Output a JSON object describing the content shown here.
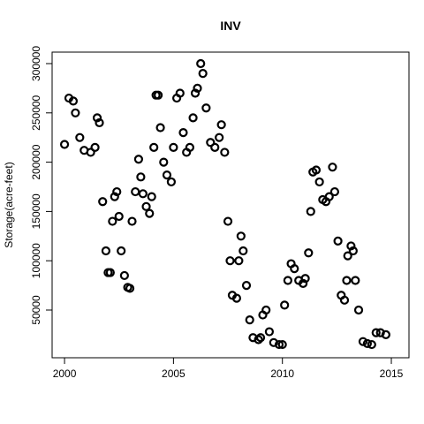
{
  "chart_data": {
    "type": "scatter",
    "title": "INV",
    "ylabel": "Storage(acre-feet)",
    "x": [
      2000.0,
      2000.2,
      2000.4,
      2000.5,
      2000.7,
      2000.9,
      2001.2,
      2001.4,
      2001.5,
      2001.6,
      2001.75,
      2001.9,
      2002.0,
      2002.1,
      2002.2,
      2002.3,
      2002.4,
      2002.5,
      2002.6,
      2002.75,
      2002.9,
      2003.0,
      2003.1,
      2003.25,
      2003.4,
      2003.5,
      2003.6,
      2003.75,
      2003.9,
      2004.0,
      2004.1,
      2004.2,
      2004.3,
      2004.4,
      2004.55,
      2004.7,
      2004.9,
      2005.0,
      2005.15,
      2005.3,
      2005.45,
      2005.6,
      2005.75,
      2005.9,
      2006.0,
      2006.1,
      2006.25,
      2006.35,
      2006.5,
      2006.7,
      2006.9,
      2007.1,
      2007.2,
      2007.35,
      2007.5,
      2007.6,
      2007.7,
      2007.9,
      2008.0,
      2008.1,
      2008.2,
      2008.35,
      2008.5,
      2008.65,
      2008.9,
      2009.0,
      2009.1,
      2009.25,
      2009.4,
      2009.6,
      2009.85,
      2010.0,
      2010.1,
      2010.25,
      2010.4,
      2010.55,
      2010.75,
      2010.95,
      2011.05,
      2011.2,
      2011.3,
      2011.4,
      2011.55,
      2011.7,
      2011.85,
      2012.0,
      2012.15,
      2012.3,
      2012.4,
      2012.55,
      2012.7,
      2012.85,
      2012.95,
      2013.0,
      2013.15,
      2013.25,
      2013.35,
      2013.5,
      2013.7,
      2013.9,
      2014.1,
      2014.3,
      2014.5,
      2014.75
    ],
    "values": [
      218000,
      265000,
      262000,
      250000,
      225000,
      212000,
      210000,
      215000,
      245000,
      240000,
      160000,
      110000,
      88000,
      88000,
      140000,
      165000,
      170000,
      145000,
      110000,
      85000,
      73000,
      72000,
      140000,
      170000,
      203000,
      185000,
      168000,
      155000,
      148000,
      165000,
      215000,
      268000,
      268000,
      235000,
      200000,
      187000,
      180000,
      215000,
      265000,
      270000,
      230000,
      210000,
      215000,
      245000,
      270000,
      275000,
      300000,
      290000,
      255000,
      220000,
      215000,
      225000,
      238000,
      210000,
      140000,
      100000,
      65000,
      62000,
      100000,
      125000,
      110000,
      75000,
      40000,
      22000,
      20000,
      22000,
      45000,
      50000,
      28000,
      17000,
      15000,
      15000,
      55000,
      80000,
      97000,
      92000,
      80000,
      77000,
      82000,
      108000,
      150000,
      190000,
      192000,
      180000,
      162000,
      160000,
      165000,
      195000,
      170000,
      120000,
      65000,
      60000,
      80000,
      105000,
      115000,
      110000,
      80000,
      50000,
      18000,
      16000,
      15000,
      27000,
      27000,
      25000
    ],
    "color": "#000000",
    "xlim": [
      1999.43,
      2015.81
    ],
    "xticks": [
      2000,
      2005,
      2010,
      2015
    ],
    "ylim": [
      1600,
      311650
    ],
    "yticks": [
      50000,
      100000,
      150000,
      200000,
      250000,
      300000
    ]
  }
}
